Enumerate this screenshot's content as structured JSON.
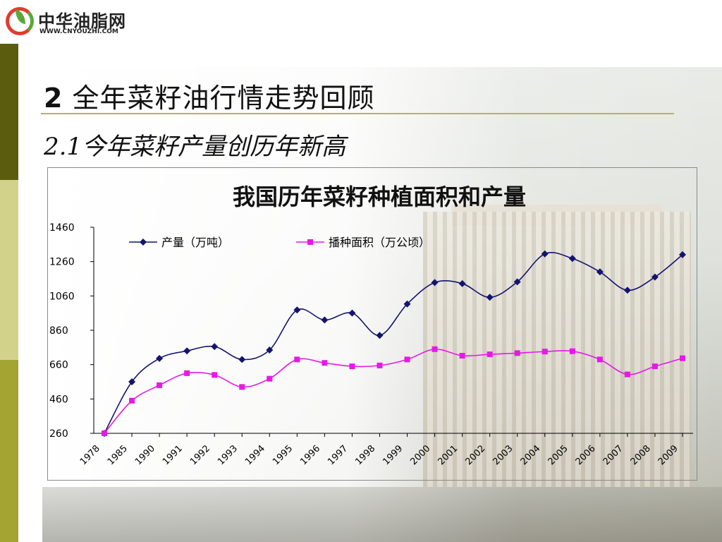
{
  "logo": {
    "name_cn": "中华油脂网",
    "url_text": "WWW.CNYOUZHI.COM",
    "accent": "#e23b2e",
    "leaf": "#5aa83a"
  },
  "slide": {
    "title_num": "2",
    "title_text": "全年菜籽油行情走势回顾",
    "subtitle": "2.1今年菜籽产量创历年新高"
  },
  "colors": {
    "bar_dark": "#5c5c0e",
    "bar_mid": "#a4a432",
    "bar_light": "#d2d28a",
    "series1": "#141470",
    "series2": "#e619e6"
  },
  "chart_data": {
    "type": "line",
    "title": "我国历年菜籽种植面积和产量",
    "categories": [
      "1978",
      "1985",
      "1990",
      "1991",
      "1992",
      "1993",
      "1994",
      "1995",
      "1996",
      "1997",
      "1998",
      "1999",
      "2000",
      "2001",
      "2002",
      "2003",
      "2004",
      "2005",
      "2006",
      "2007",
      "2008",
      "2009"
    ],
    "series": [
      {
        "name": "产量（万吨）",
        "values": [
          240,
          560,
          696,
          740,
          765,
          690,
          745,
          978,
          920,
          960,
          830,
          1013,
          1138,
          1132,
          1052,
          1142,
          1305,
          1278,
          1200,
          1093,
          1170,
          1300
        ]
      },
      {
        "name": "播种面积（万公顷）",
        "values": [
          260,
          450,
          540,
          610,
          600,
          530,
          578,
          690,
          670,
          650,
          655,
          690,
          750,
          712,
          720,
          727,
          736,
          738,
          690,
          603,
          650,
          697
        ]
      }
    ],
    "y_ticks": [
      1460,
      1260,
      1060,
      860,
      660,
      460,
      260
    ],
    "ylim": [
      260,
      1460
    ],
    "legend_position": "top",
    "grid": false
  }
}
